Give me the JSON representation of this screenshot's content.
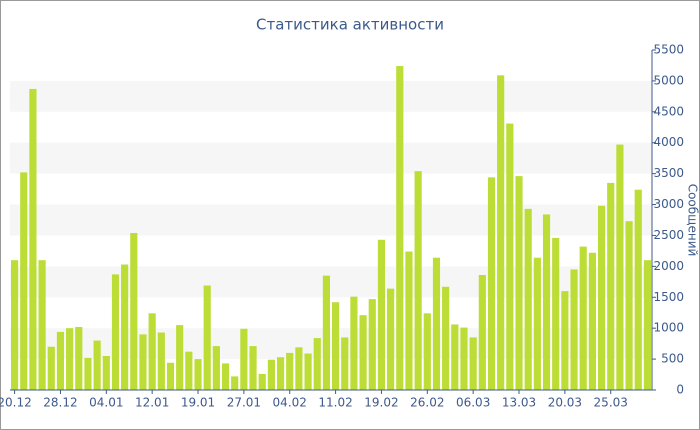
{
  "chart_data": {
    "type": "bar",
    "title": "Статистика активности",
    "y_label": "Сообщений",
    "categories": [
      "20.12",
      null,
      null,
      null,
      null,
      "28.12",
      null,
      null,
      null,
      null,
      "04.01",
      null,
      null,
      null,
      null,
      "12.01",
      null,
      null,
      null,
      null,
      "19.01",
      null,
      null,
      null,
      null,
      "27.01",
      null,
      null,
      null,
      null,
      "04.02",
      null,
      null,
      null,
      null,
      "11.02",
      null,
      null,
      null,
      null,
      "19.02",
      null,
      null,
      null,
      null,
      "26.02",
      null,
      null,
      null,
      null,
      "06.03",
      null,
      null,
      null,
      null,
      "13.03",
      null,
      null,
      null,
      null,
      "20.03",
      null,
      null,
      null,
      null,
      "25.03",
      null,
      null,
      null,
      null
    ],
    "values": [
      2100,
      3520,
      4870,
      2100,
      700,
      940,
      1000,
      1020,
      520,
      800,
      550,
      1870,
      2030,
      2540,
      900,
      1240,
      930,
      440,
      1050,
      620,
      500,
      1690,
      710,
      430,
      220,
      990,
      710,
      260,
      490,
      530,
      600,
      690,
      590,
      840,
      1850,
      1420,
      850,
      1510,
      1210,
      1470,
      2430,
      1640,
      5240,
      2240,
      3540,
      1240,
      2140,
      1670,
      1060,
      1010,
      850,
      1860,
      3440,
      5090,
      4310,
      3460,
      2930,
      2140,
      2840,
      2460,
      1600,
      1950,
      2320,
      2220,
      2980,
      3350,
      3970,
      2730,
      3240,
      2100
    ],
    "color": "#bcdc36",
    "ylim": [
      0,
      5500
    ],
    "yticks": [
      0,
      500,
      1000,
      1500,
      2000,
      2500,
      3000,
      3500,
      4000,
      4500,
      5000,
      5500
    ],
    "grid": "bands"
  }
}
